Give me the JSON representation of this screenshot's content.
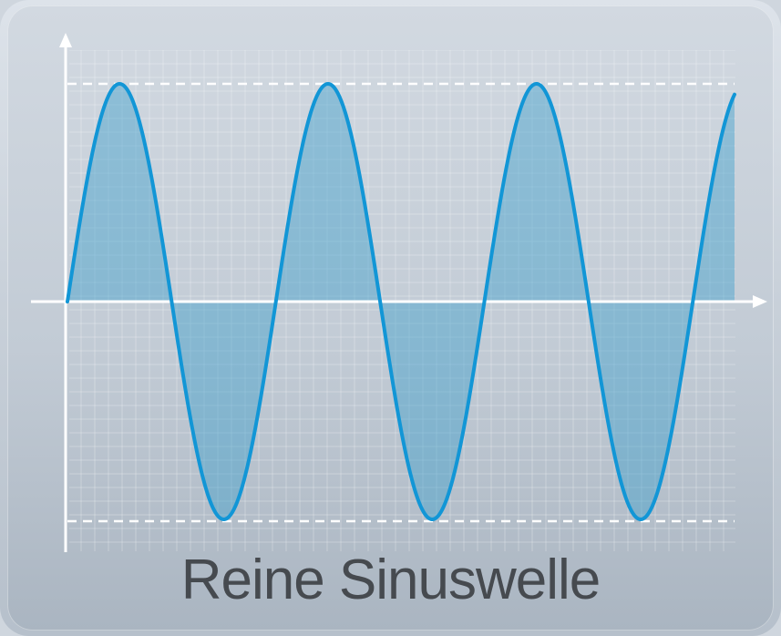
{
  "caption": "Reine Sinuswelle",
  "colors": {
    "wave_stroke": "#1296d6",
    "wave_fill": "#3f9fcc",
    "grid": "#ffffff",
    "axis": "#ffffff",
    "caption_text": "#464a4f"
  },
  "wave": {
    "cycles_shown": 3.2,
    "amplitude_normalized": 1
  }
}
